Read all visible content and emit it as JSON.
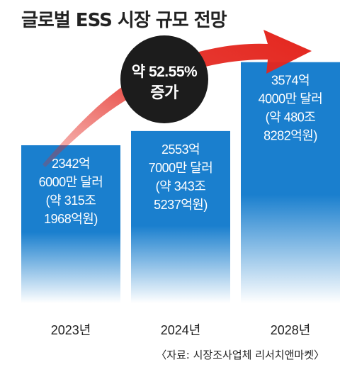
{
  "title": "글로벌 ESS 시장 규모 전망",
  "source": "〈자료: 시장조사업체 리서치앤마켓〉",
  "growth_label": [
    "약 52.55%",
    "증가"
  ],
  "colors": {
    "bar_top": "#1a7fce",
    "bar_bottom": "#ffffff",
    "bubble": "#1c1c1c",
    "arrow": "#e4261e",
    "bar_text": "#ffffff",
    "axis_text": "#222222"
  },
  "chart_data": {
    "type": "bar",
    "title": "글로벌 ESS 시장 규모 전망",
    "categories": [
      "2023년",
      "2024년",
      "2028년"
    ],
    "series": [
      {
        "values": [
          2342.6,
          2553.7,
          3574.4
        ]
      }
    ],
    "data_labels": [
      [
        "2342억",
        "6000만 달러",
        "(약 315조",
        "1968억원)"
      ],
      [
        "2553억",
        "7000만 달러",
        "(약 343조",
        "5237억원)"
      ],
      [
        "3574억",
        "4000만 달러",
        "(약 480조",
        "8282억원)"
      ]
    ],
    "annotation": "약 52.55% 증가",
    "xlabel": "",
    "ylabel": "",
    "grid": false,
    "legend": "none"
  }
}
